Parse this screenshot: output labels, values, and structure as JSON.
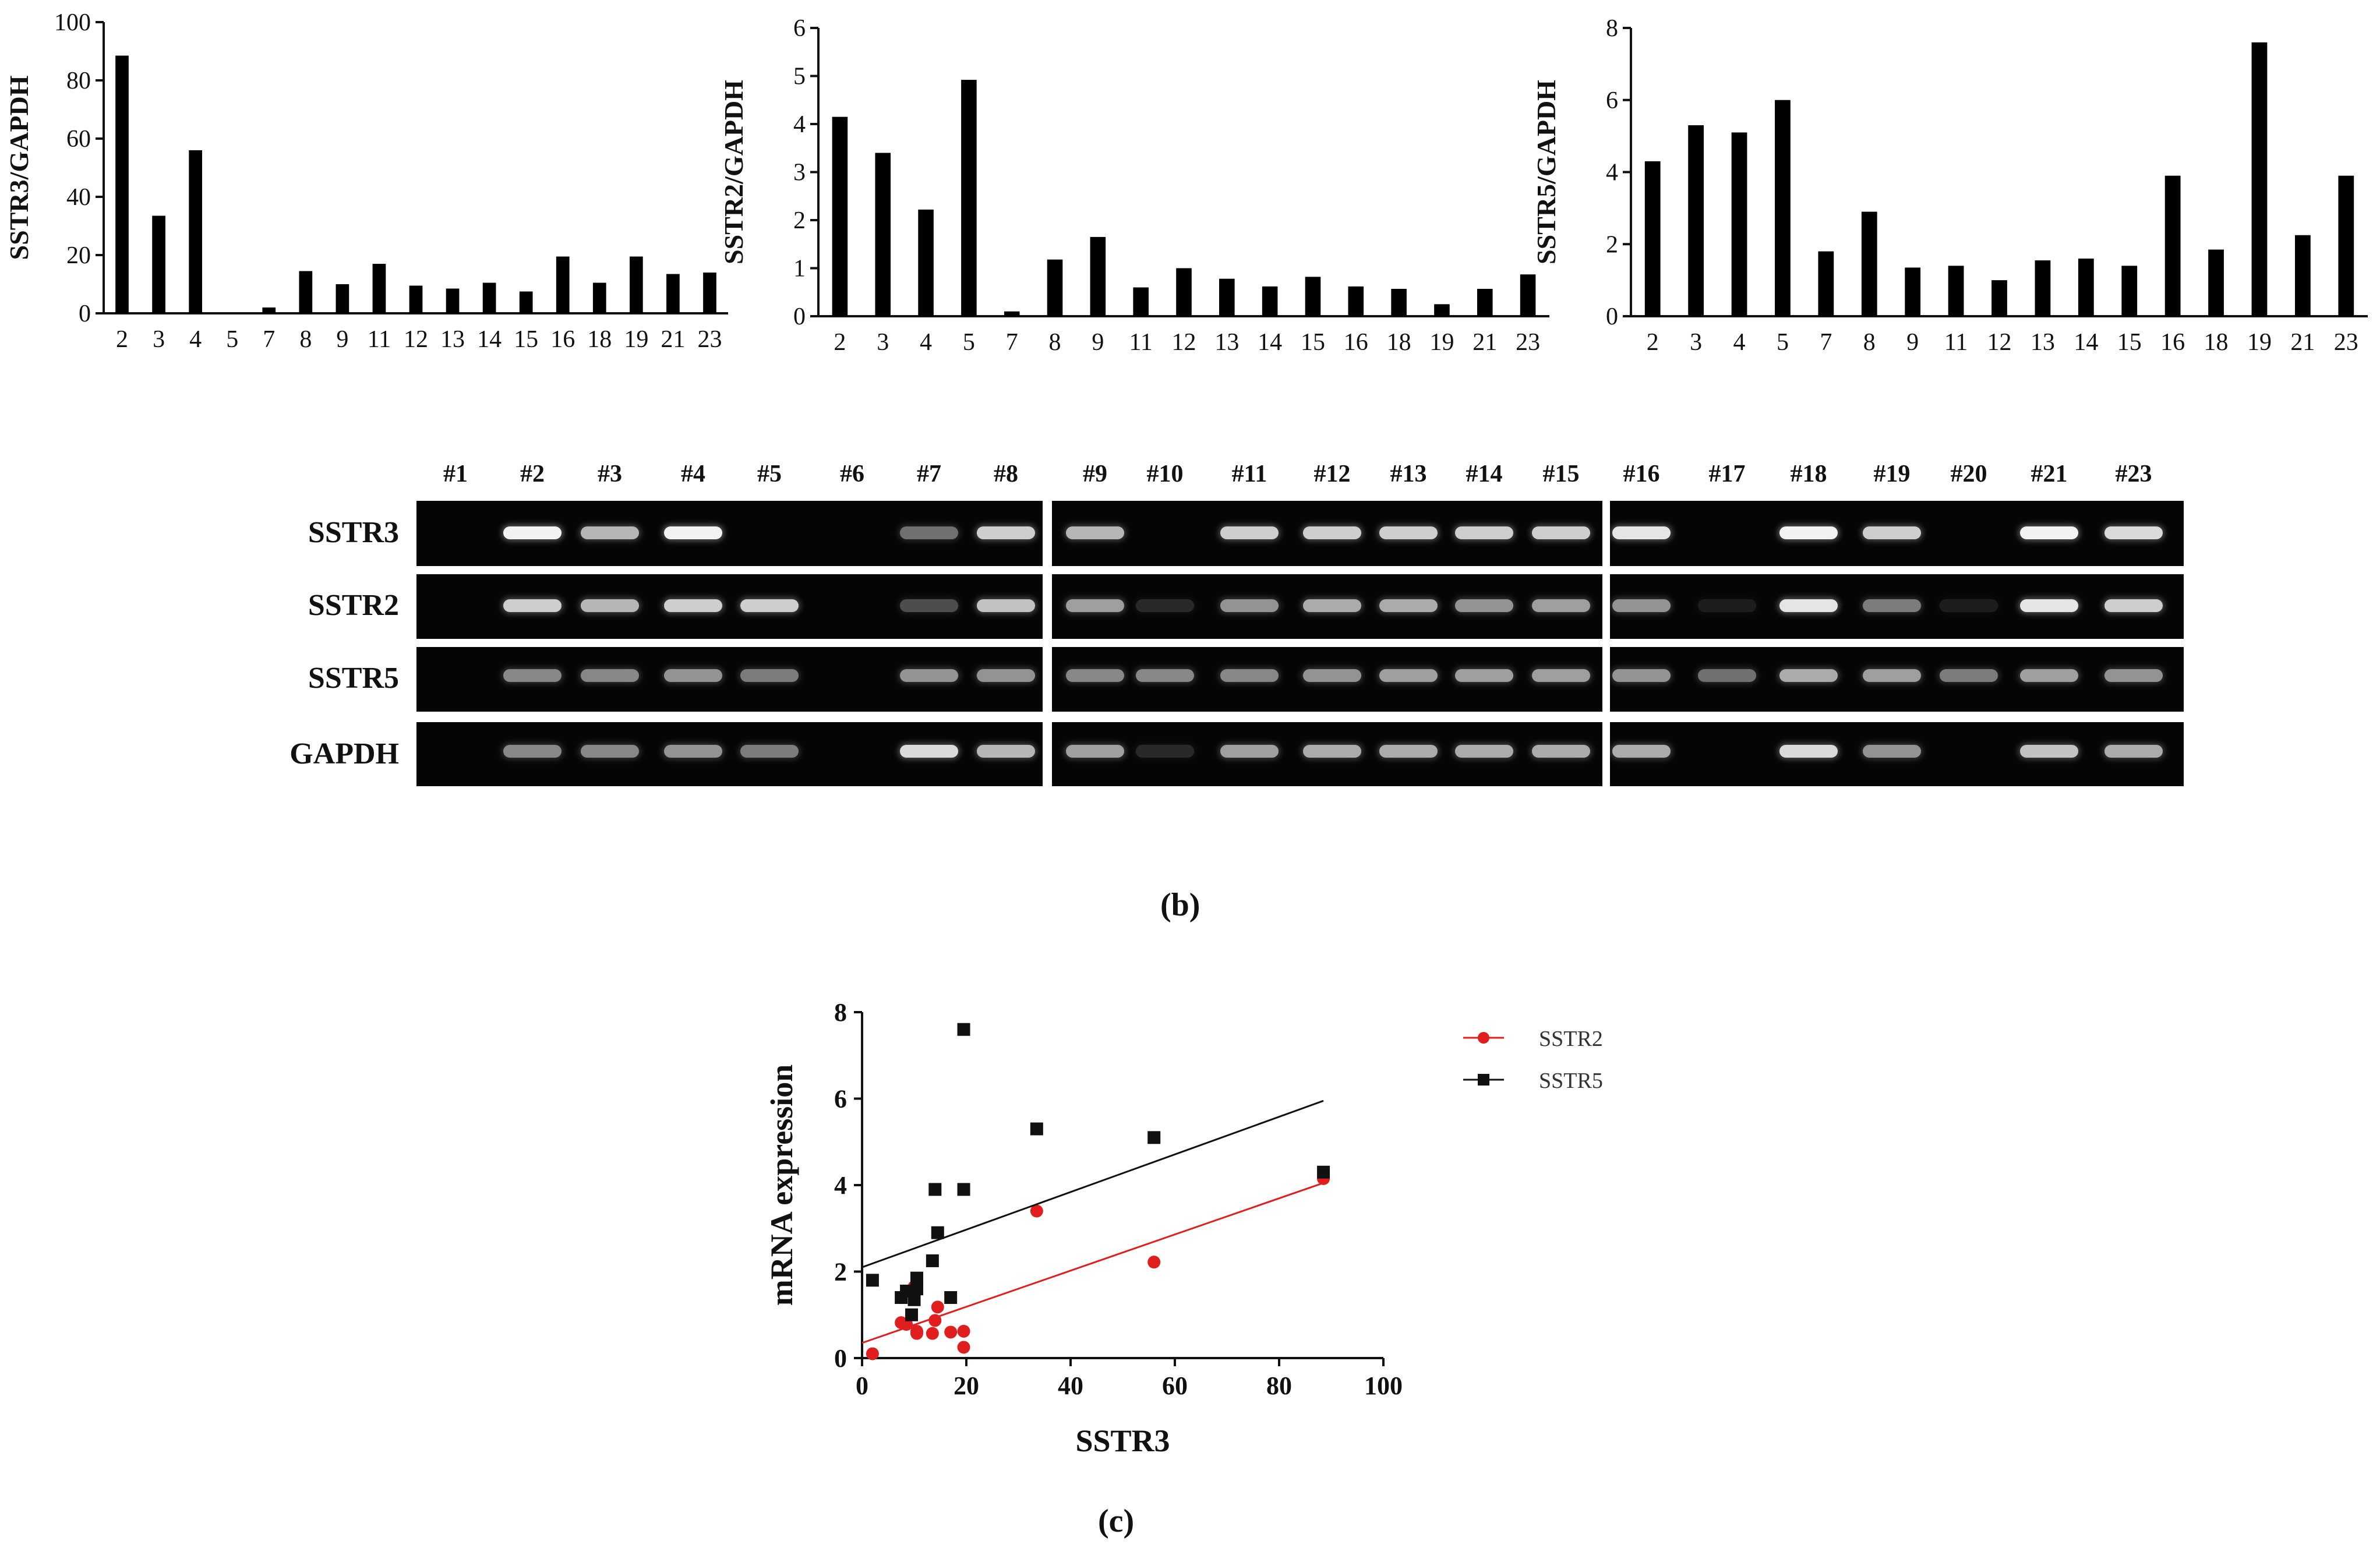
{
  "chart_data": [
    {
      "type": "bar",
      "ylabel": "SSTR3/GAPDH",
      "categories": [
        "2",
        "3",
        "4",
        "5",
        "7",
        "8",
        "9",
        "11",
        "12",
        "13",
        "14",
        "15",
        "16",
        "18",
        "19",
        "21",
        "23"
      ],
      "values": [
        88.5,
        33.5,
        56,
        0,
        2,
        14.5,
        10,
        17,
        9.5,
        8.5,
        10.5,
        7.5,
        19.5,
        10.5,
        19.5,
        13.5,
        14
      ],
      "ylim": [
        0,
        100
      ],
      "yticks": [
        "0",
        "20",
        "40",
        "60",
        "80",
        "100"
      ]
    },
    {
      "type": "bar",
      "ylabel": "SSTR2/GAPDH",
      "categories": [
        "2",
        "3",
        "4",
        "5",
        "7",
        "8",
        "9",
        "11",
        "12",
        "13",
        "14",
        "15",
        "16",
        "18",
        "19",
        "21",
        "23"
      ],
      "values": [
        4.15,
        3.4,
        2.22,
        4.92,
        0.1,
        1.18,
        1.65,
        0.6,
        1.0,
        0.78,
        0.62,
        0.82,
        0.62,
        0.57,
        0.25,
        0.57,
        0.87
      ],
      "ylim": [
        0,
        6
      ],
      "yticks": [
        "0",
        "1",
        "2",
        "3",
        "4",
        "5",
        "6"
      ]
    },
    {
      "type": "bar",
      "ylabel": "SSTR5/GAPDH",
      "categories": [
        "2",
        "3",
        "4",
        "5",
        "7",
        "8",
        "9",
        "11",
        "12",
        "13",
        "14",
        "15",
        "16",
        "18",
        "19",
        "21",
        "23"
      ],
      "values": [
        4.3,
        5.3,
        5.1,
        6.0,
        1.8,
        2.9,
        1.35,
        1.4,
        1.0,
        1.55,
        1.6,
        1.4,
        3.9,
        1.85,
        7.6,
        2.25,
        3.9
      ],
      "ylim": [
        0,
        8
      ],
      "yticks": [
        "0",
        "2",
        "4",
        "6",
        "8"
      ]
    },
    {
      "type": "scatter",
      "xlabel": "SSTR3",
      "ylabel": "mRNA expression",
      "xlim": [
        0,
        100
      ],
      "ylim": [
        0,
        8
      ],
      "xticks": [
        "0",
        "20",
        "40",
        "60",
        "80",
        "100"
      ],
      "yticks": [
        "0",
        "2",
        "4",
        "6",
        "8"
      ],
      "series": [
        {
          "name": "SSTR2",
          "color": "#e01e1e",
          "marker": "circle",
          "x": [
            88.5,
            33.5,
            56,
            2,
            14.5,
            10,
            17,
            9.5,
            8.5,
            10.5,
            7.5,
            19.5,
            10.5,
            19.5,
            13.5,
            14
          ],
          "y": [
            4.15,
            3.4,
            2.22,
            0.1,
            1.18,
            1.65,
            0.6,
            1.0,
            0.78,
            0.62,
            0.82,
            0.62,
            0.57,
            0.25,
            0.57,
            0.87
          ],
          "fit": [
            [
              0,
              0.35
            ],
            [
              88.5,
              4.05
            ]
          ]
        },
        {
          "name": "SSTR5",
          "color": "#111111",
          "marker": "square",
          "x": [
            88.5,
            33.5,
            56,
            2,
            14.5,
            10,
            17,
            9.5,
            8.5,
            10.5,
            7.5,
            19.5,
            10.5,
            19.5,
            13.5,
            14
          ],
          "y": [
            4.3,
            5.3,
            5.1,
            1.8,
            2.9,
            1.35,
            1.4,
            1.0,
            1.55,
            1.6,
            1.4,
            3.9,
            1.85,
            7.6,
            2.25,
            3.9
          ],
          "fit": [
            [
              0,
              2.1
            ],
            [
              88.5,
              5.95
            ]
          ]
        }
      ]
    }
  ],
  "gel": {
    "rows": [
      "SSTR3",
      "SSTR2",
      "SSTR5",
      "GAPDH"
    ],
    "lanes": [
      "#1",
      "#2",
      "#3",
      "#4",
      "#5",
      "#6",
      "#7",
      "#8",
      "#9",
      "#10",
      "#11",
      "#12",
      "#13",
      "#14",
      "#15",
      "#16",
      "#17",
      "#18",
      "#19",
      "#20",
      "#21",
      "#23"
    ],
    "band_intensity": {
      "SSTR3": [
        0,
        1.0,
        0.75,
        1.0,
        0,
        0,
        0.45,
        0.85,
        0.75,
        0,
        0.85,
        0.85,
        0.85,
        0.85,
        0.85,
        0.95,
        0,
        1.0,
        0.85,
        0,
        1.0,
        0.9
      ],
      "SSTR2": [
        0,
        0.85,
        0.75,
        0.85,
        0.85,
        0,
        0.3,
        0.8,
        0.65,
        0.15,
        0.6,
        0.7,
        0.7,
        0.6,
        0.65,
        0.6,
        0.1,
        0.95,
        0.5,
        0.1,
        0.95,
        0.85
      ],
      "SSTR5": [
        0,
        0.55,
        0.55,
        0.6,
        0.5,
        0,
        0.6,
        0.6,
        0.55,
        0.55,
        0.55,
        0.6,
        0.65,
        0.65,
        0.65,
        0.6,
        0.45,
        0.7,
        0.65,
        0.5,
        0.65,
        0.6
      ],
      "GAPDH": [
        0,
        0.55,
        0.55,
        0.6,
        0.5,
        0,
        0.9,
        0.75,
        0.65,
        0.15,
        0.65,
        0.7,
        0.7,
        0.7,
        0.7,
        0.7,
        0,
        0.9,
        0.6,
        0,
        0.8,
        0.7
      ]
    }
  },
  "panel_labels": {
    "b": "(b)",
    "c": "(c)"
  }
}
